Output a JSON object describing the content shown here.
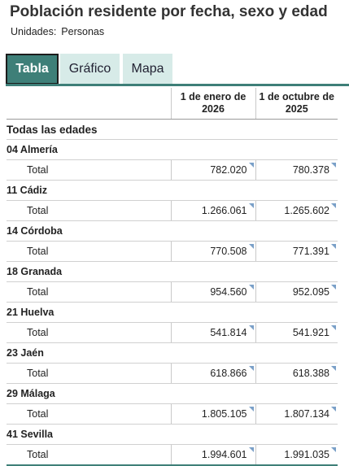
{
  "header": {
    "title": "Población residente por fecha, sexo y edad",
    "units_label": "Unidades:",
    "units_value": "Personas"
  },
  "tabs": [
    {
      "label": "Tabla",
      "active": true
    },
    {
      "label": "Gráfico",
      "active": false
    },
    {
      "label": "Mapa",
      "active": false
    }
  ],
  "table": {
    "columns": [
      "1 de enero de 2026",
      "1 de octubre de 2025"
    ],
    "section": "Todas las edades",
    "row_label": "Total",
    "rows": [
      {
        "province": "04 Almería",
        "values": [
          "782.020",
          "780.378"
        ]
      },
      {
        "province": "11 Cádiz",
        "values": [
          "1.266.061",
          "1.265.602"
        ]
      },
      {
        "province": "14 Córdoba",
        "values": [
          "770.508",
          "771.391"
        ]
      },
      {
        "province": "18 Granada",
        "values": [
          "954.560",
          "952.095"
        ]
      },
      {
        "province": "21 Huelva",
        "values": [
          "541.814",
          "541.921"
        ]
      },
      {
        "province": "23 Jaén",
        "values": [
          "618.866",
          "618.388"
        ]
      },
      {
        "province": "29 Málaga",
        "values": [
          "1.805.105",
          "1.807.134"
        ]
      },
      {
        "province": "41 Sevilla",
        "values": [
          "1.994.601",
          "1.991.035"
        ]
      }
    ]
  },
  "colors": {
    "accent": "#3e7f78",
    "tab_inactive": "#d7ebe8",
    "cell_marker": "#7aa0c8"
  },
  "icons": {
    "cell_marker": "cell-corner-marker-icon"
  }
}
